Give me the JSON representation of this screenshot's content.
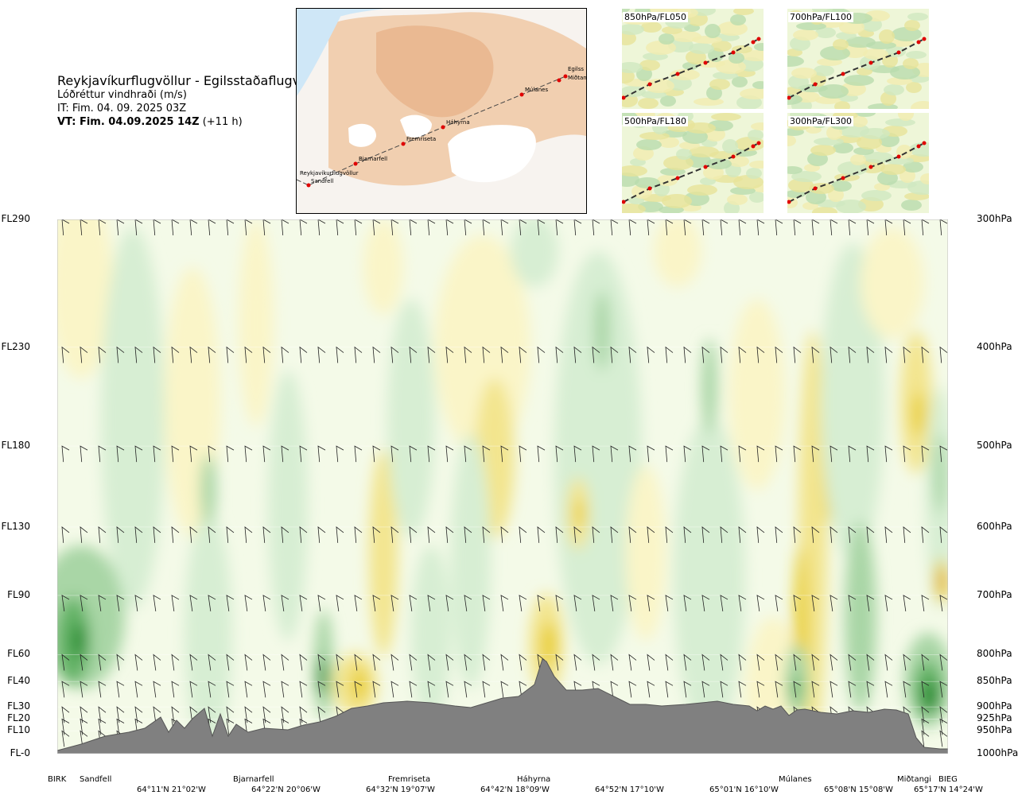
{
  "header": {
    "route": "Reykjavíkurflugvöllur - Egilsstaðaflugvöllur",
    "variable": "Lóðréttur vindhraði (m/s)",
    "it": "IT: Fim. 04. 09. 2025 03Z",
    "vt_bold": "VT: Fim. 04.09.2025 14Z",
    "vt_suffix": " (+11 h)"
  },
  "map": {
    "waypoints": [
      "Reykjavíkurflugvöllur",
      "Sandfell",
      "Bjarnarfell",
      "Fremriseta",
      "Háhyrna",
      "Múlanes",
      "Egilss",
      "Miðtangi"
    ]
  },
  "mini_maps": [
    {
      "label": "850hPa/FL050"
    },
    {
      "label": "700hPa/FL100"
    },
    {
      "label": "500hPa/FL180"
    },
    {
      "label": "300hPa/FL300"
    }
  ],
  "chart_data": {
    "type": "heatmap",
    "description_levels": "vertical cross-section of vertical wind speed along route",
    "left_axis": [
      "FL290",
      "FL230",
      "FL180",
      "FL130",
      "FL90",
      "FL60",
      "FL40",
      "FL30",
      "FL20",
      "FL10",
      "FL-0"
    ],
    "right_axis": [
      "300hPa",
      "400hPa",
      "500hPa",
      "600hPa",
      "700hPa",
      "800hPa",
      "850hPa",
      "900hPa",
      "925hPa",
      "950hPa",
      "1000hPa"
    ],
    "pressure_levels": [
      300,
      400,
      500,
      600,
      700,
      800,
      850,
      900,
      925,
      950,
      1000
    ],
    "places": [
      "BIRK",
      "Sandfell",
      "Bjarnarfell",
      "Fremriseta",
      "Háhyrna",
      "Múlanes",
      "Miðtangi",
      "BIEG"
    ],
    "coords": [
      "64°11'N 21°02'W",
      "64°22'N 20°06'W",
      "64°32'N 19°07'W",
      "64°42'N 18°09'W",
      "64°52'N 17°10'W",
      "65°01'N 16°10'W",
      "65°08'N 15°08'W",
      "65°17'N 14°24'W"
    ],
    "colors": {
      "up_strong": "#1f8a2a",
      "up_mid": "#63b366",
      "up_weak": "#a9d6a6",
      "up_faint": "#d7eed3",
      "neutral": "#f4fae8",
      "down_faint": "#faf5c8",
      "down_weak": "#f3e58e",
      "down_mid": "#e9cf2e",
      "down_strong": "#e0a618",
      "terrain": "#808080"
    }
  }
}
